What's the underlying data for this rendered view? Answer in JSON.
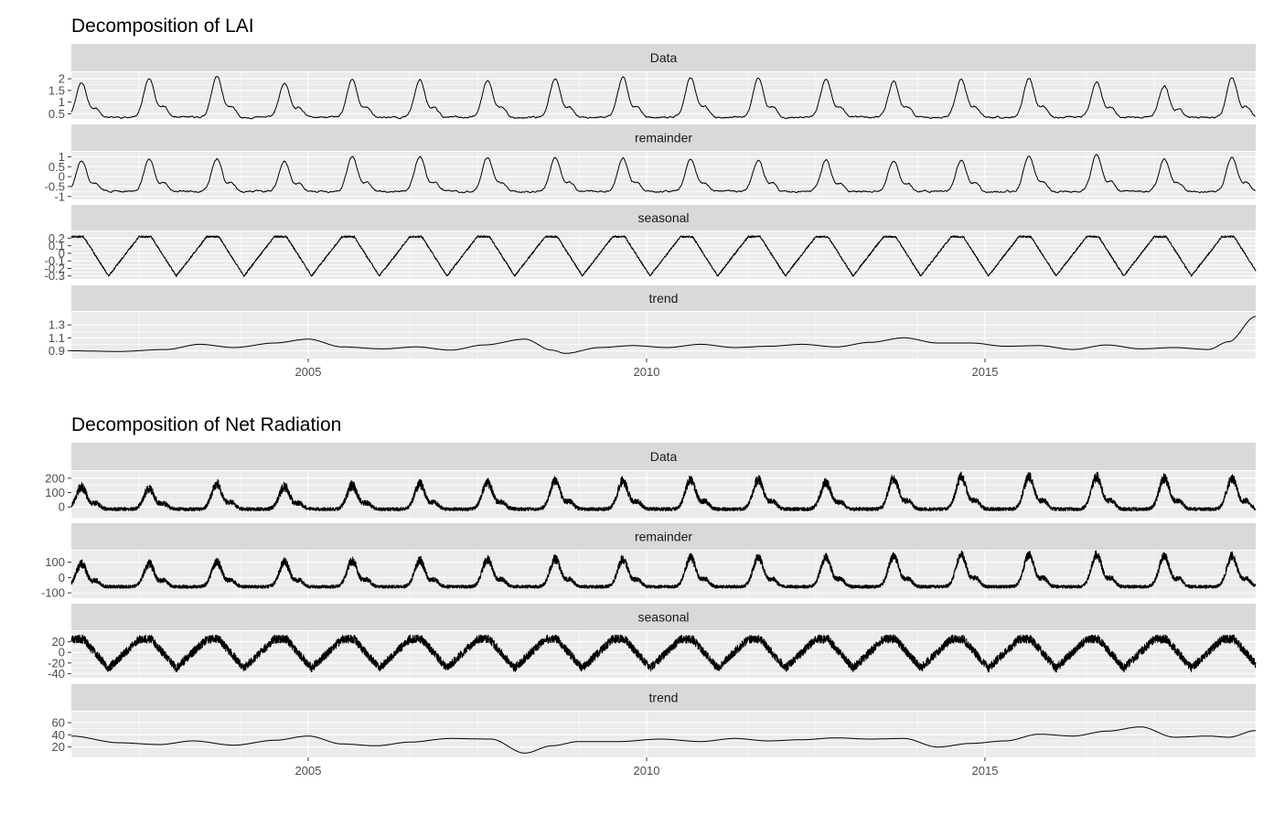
{
  "chart_data": [
    {
      "type": "line",
      "title": "Decomposition of LAI",
      "x_range": [
        2001.5,
        2019.0
      ],
      "x_ticks": [
        2005,
        2010,
        2015
      ],
      "panels": [
        {
          "label": "Data",
          "yticks": [
            0.5,
            1.0,
            1.5,
            2.0
          ],
          "ylim": [
            0.28,
            2.28
          ],
          "series": {
            "kind": "smooth",
            "base": 0.35,
            "amp": 1.6,
            "noise": 0.04,
            "seed": 11,
            "peaks": [
              1.85,
              2.05,
              2.1,
              1.8,
              1.95,
              1.95,
              1.95,
              2.0,
              2.05,
              2.05,
              2.0,
              2.0,
              1.9,
              1.95,
              2.0,
              1.85,
              1.65,
              2.05,
              2.3
            ]
          }
        },
        {
          "label": "remainder",
          "yticks": [
            -1.0,
            -0.5,
            0.0,
            0.5,
            1.0
          ],
          "ylim": [
            -1.15,
            1.25
          ],
          "series": {
            "kind": "smooth",
            "base": -0.75,
            "amp": 1.6,
            "noise": 0.05,
            "seed": 12,
            "peaks": [
              0.8,
              0.9,
              0.9,
              0.8,
              1.0,
              1.0,
              0.95,
              0.95,
              0.95,
              0.9,
              0.85,
              0.8,
              0.8,
              0.85,
              1.05,
              1.1,
              0.9,
              1.0,
              1.2
            ]
          }
        },
        {
          "label": "seasonal",
          "yticks": [
            -0.3,
            -0.2,
            -0.1,
            0.0,
            0.1,
            0.2
          ],
          "ylim": [
            -0.34,
            0.29
          ],
          "series": {
            "kind": "seasonal",
            "hi": 0.22,
            "lo": -0.3,
            "noise": 0.012,
            "seed": 13
          }
        },
        {
          "label": "trend",
          "yticks": [
            0.9,
            1.1,
            1.3
          ],
          "ylim": [
            0.78,
            1.5
          ],
          "series": {
            "kind": "trend",
            "points": [
              [
                2001.5,
                0.9
              ],
              [
                2002.2,
                0.89
              ],
              [
                2002.9,
                0.92
              ],
              [
                2003.4,
                1.0
              ],
              [
                2003.9,
                0.95
              ],
              [
                2004.5,
                1.02
              ],
              [
                2005.0,
                1.08
              ],
              [
                2005.5,
                0.96
              ],
              [
                2006.1,
                0.93
              ],
              [
                2006.6,
                0.96
              ],
              [
                2007.1,
                0.91
              ],
              [
                2007.6,
                0.99
              ],
              [
                2008.2,
                1.08
              ],
              [
                2008.6,
                0.91
              ],
              [
                2008.8,
                0.86
              ],
              [
                2009.3,
                0.95
              ],
              [
                2009.8,
                0.98
              ],
              [
                2010.3,
                0.95
              ],
              [
                2010.8,
                1.0
              ],
              [
                2011.3,
                0.95
              ],
              [
                2011.8,
                0.97
              ],
              [
                2012.3,
                1.0
              ],
              [
                2012.8,
                0.96
              ],
              [
                2013.3,
                1.03
              ],
              [
                2013.8,
                1.1
              ],
              [
                2014.3,
                1.02
              ],
              [
                2014.8,
                1.02
              ],
              [
                2015.3,
                0.97
              ],
              [
                2015.8,
                0.98
              ],
              [
                2016.3,
                0.92
              ],
              [
                2016.8,
                0.99
              ],
              [
                2017.3,
                0.93
              ],
              [
                2017.8,
                0.95
              ],
              [
                2018.3,
                0.92
              ],
              [
                2018.6,
                1.04
              ],
              [
                2019.0,
                1.43
              ]
            ]
          }
        }
      ]
    },
    {
      "type": "line",
      "title": "Decomposition of Net Radiation",
      "x_range": [
        2001.5,
        2019.0
      ],
      "x_ticks": [
        2005,
        2010,
        2015
      ],
      "panels": [
        {
          "label": "Data",
          "yticks": [
            0,
            100,
            200
          ],
          "ylim": [
            -75,
            250
          ],
          "series": {
            "kind": "noisy",
            "base": -15,
            "amp": 120,
            "noise": 35,
            "seed": 21,
            "peaks": [
              140,
              130,
              160,
              140,
              150,
              160,
              170,
              180,
              180,
              190,
              190,
              170,
              200,
              210,
              210,
              210,
              200,
              200,
              210
            ]
          }
        },
        {
          "label": "remainder",
          "yticks": [
            -100,
            0,
            100
          ],
          "ylim": [
            -135,
            175
          ],
          "series": {
            "kind": "noisy",
            "base": -60,
            "amp": 120,
            "noise": 30,
            "seed": 22,
            "peaks": [
              90,
              90,
              100,
              100,
              110,
              110,
              120,
              120,
              120,
              130,
              130,
              130,
              140,
              150,
              150,
              150,
              140,
              140,
              150
            ]
          }
        },
        {
          "label": "seasonal",
          "yticks": [
            -40,
            -20,
            0,
            20
          ],
          "ylim": [
            -48,
            40
          ],
          "series": {
            "kind": "seasonal_noisy",
            "hi": 25,
            "lo": -30,
            "noise": 8,
            "seed": 23
          }
        },
        {
          "label": "trend",
          "yticks": [
            20,
            40,
            60
          ],
          "ylim": [
            3,
            78
          ],
          "series": {
            "kind": "trend",
            "points": [
              [
                2001.5,
                38
              ],
              [
                2002.2,
                27
              ],
              [
                2002.8,
                24
              ],
              [
                2003.3,
                30
              ],
              [
                2003.9,
                23
              ],
              [
                2004.5,
                31
              ],
              [
                2005.0,
                38
              ],
              [
                2005.5,
                25
              ],
              [
                2006.0,
                22
              ],
              [
                2006.5,
                28
              ],
              [
                2007.1,
                34
              ],
              [
                2007.7,
                33
              ],
              [
                2008.2,
                10
              ],
              [
                2008.6,
                22
              ],
              [
                2009.0,
                29
              ],
              [
                2009.6,
                29
              ],
              [
                2010.2,
                33
              ],
              [
                2010.8,
                29
              ],
              [
                2011.3,
                34
              ],
              [
                2011.8,
                30
              ],
              [
                2012.3,
                32
              ],
              [
                2012.8,
                35
              ],
              [
                2013.3,
                33
              ],
              [
                2013.8,
                34
              ],
              [
                2014.3,
                20
              ],
              [
                2014.8,
                26
              ],
              [
                2015.3,
                30
              ],
              [
                2015.8,
                41
              ],
              [
                2016.3,
                38
              ],
              [
                2016.8,
                46
              ],
              [
                2017.3,
                53
              ],
              [
                2017.8,
                36
              ],
              [
                2018.3,
                38
              ],
              [
                2018.6,
                36
              ],
              [
                2019.0,
                47
              ]
            ]
          }
        }
      ]
    }
  ]
}
